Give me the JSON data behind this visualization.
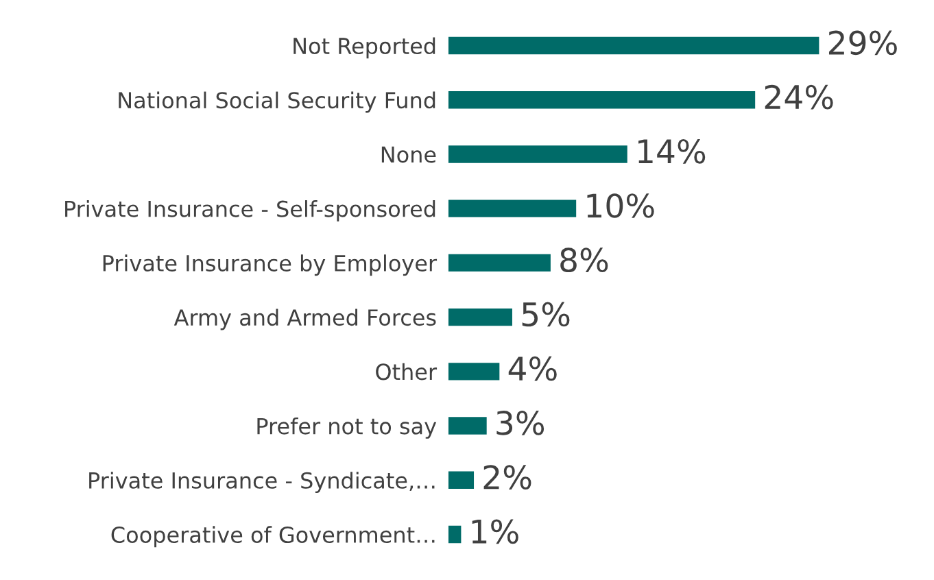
{
  "chart_data": {
    "type": "bar",
    "orientation": "horizontal",
    "categories": [
      "Not Reported",
      "National Social Security Fund",
      "None",
      "Private Insurance - Self-sponsored",
      "Private Insurance by Employer",
      "Army and Armed Forces",
      "Other",
      "Prefer not to say",
      "Private Insurance - Syndicate,…",
      "Cooperative of Government…"
    ],
    "values": [
      29,
      24,
      14,
      10,
      8,
      5,
      4,
      3,
      2,
      1
    ],
    "value_labels": [
      "29%",
      "24%",
      "14%",
      "10%",
      "8%",
      "5%",
      "4%",
      "3%",
      "2%",
      "1%"
    ],
    "color": "#006b68",
    "grid": false,
    "legend": false
  }
}
